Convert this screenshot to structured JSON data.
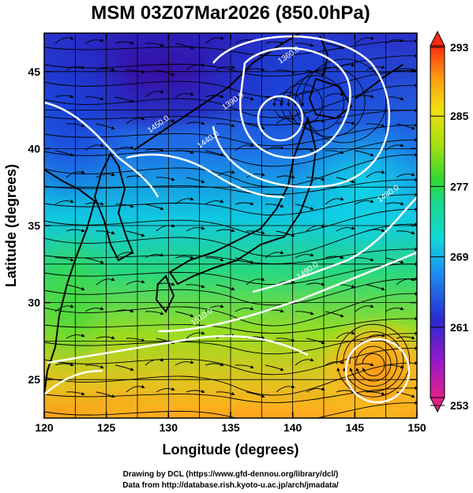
{
  "title": "MSM 03Z07Mar2026 (850.0hPa)",
  "xlabel": "Longitude (degrees)",
  "ylabel": "Latitude  (degrees)",
  "credits": {
    "line1": "Drawing by DCL (https://www.gfd-dennou.org/library/dcl/)",
    "line2": "Data from http://database.rish.kyoto-u.ac.jp/arch/jmadata/"
  },
  "map_data": {
    "xlim": [
      120,
      150
    ],
    "ylim": [
      22.5,
      47.5
    ],
    "xticks": [
      120,
      125,
      130,
      135,
      140,
      145,
      150
    ],
    "yticks": [
      25,
      30,
      35,
      40,
      45
    ],
    "colorbar": {
      "min": 253,
      "max": 293,
      "ticks": [
        253,
        261,
        269,
        277,
        285,
        293
      ]
    },
    "contour_labels": [
      {
        "text": "1360.0",
        "lon": 139.0,
        "lat": 45.5
      },
      {
        "text": "1390.0",
        "lon": 134.5,
        "lat": 42.5
      },
      {
        "text": "1450.0",
        "lon": 128.5,
        "lat": 41.0
      },
      {
        "text": "1440.0",
        "lon": 132.5,
        "lat": 40.0
      },
      {
        "text": "1480.0",
        "lon": 147.0,
        "lat": 36.5
      },
      {
        "text": "1490.0",
        "lon": 140.5,
        "lat": 31.5
      },
      {
        "text": "1510.0",
        "lon": 132.0,
        "lat": 28.5
      }
    ]
  },
  "colors": {
    "warm": "#ff9a1a",
    "cold": "#2a0a9a",
    "contour": "#ffffff",
    "streamline": "#000000"
  }
}
